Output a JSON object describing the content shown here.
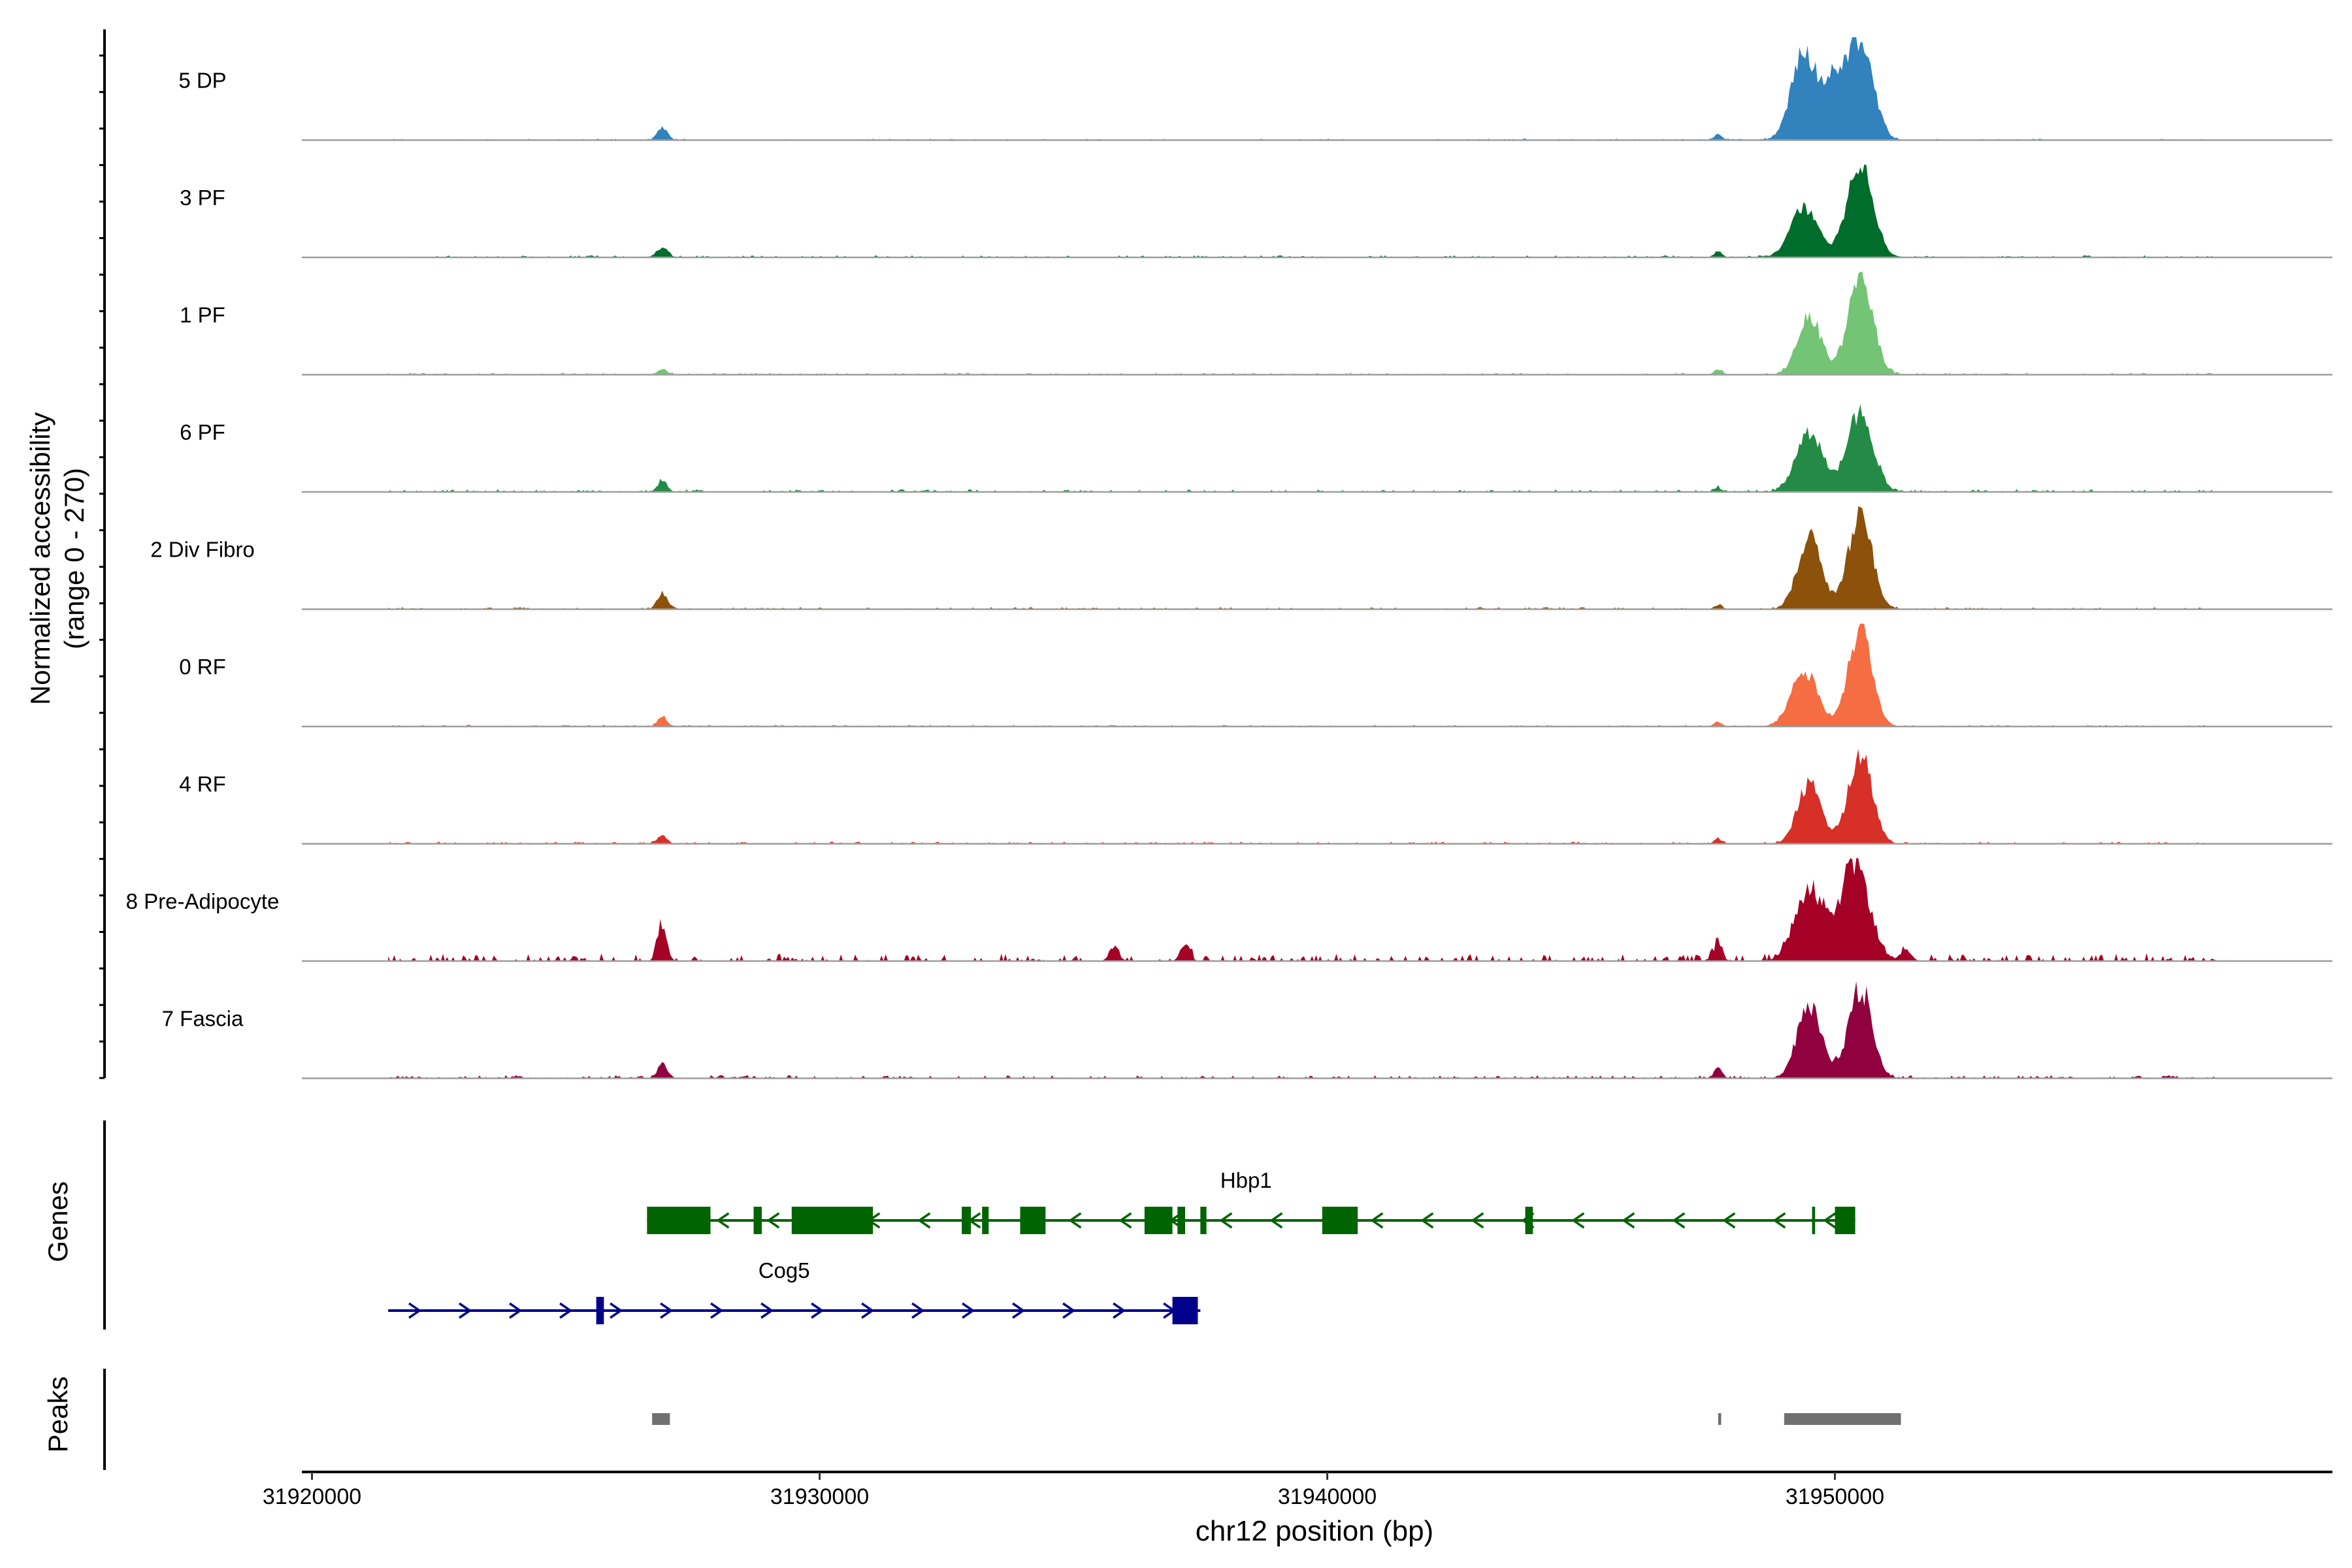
{
  "chart_data": {
    "type": "area",
    "title": "",
    "ylabel_line1": "Normalized accessibility",
    "ylabel_line2": "(range 0 - 270)",
    "xlabel": "chr12 position (bp)",
    "xlim": [
      31919800,
      31959800
    ],
    "xticks": [
      31920000,
      31930000,
      31940000,
      31950000
    ],
    "xtick_labels": [
      "31920000",
      "31930000",
      "31940000",
      "31950000"
    ],
    "y_range": [
      0,
      270
    ],
    "panel_labels": {
      "genes": "Genes",
      "peaks": "Peaks"
    },
    "tracks": [
      {
        "name": "5 DP",
        "color": "#3182bd",
        "peaks": [
          [
            31926900,
            0.13,
            100
          ],
          [
            31949400,
            0.9,
            250
          ],
          [
            31950000,
            0.55,
            200
          ],
          [
            31950500,
            1.0,
            250
          ],
          [
            31947700,
            0.06,
            80
          ]
        ],
        "noise": 0.015
      },
      {
        "name": "3 PF",
        "color": "#006d2c",
        "peaks": [
          [
            31926900,
            0.1,
            110
          ],
          [
            31949400,
            0.5,
            270
          ],
          [
            31950500,
            1.0,
            250
          ],
          [
            31947700,
            0.06,
            80
          ]
        ],
        "noise": 0.02
      },
      {
        "name": "1 PF",
        "color": "#74c476",
        "peaks": [
          [
            31926900,
            0.05,
            100
          ],
          [
            31949500,
            0.6,
            230
          ],
          [
            31950500,
            1.0,
            240
          ],
          [
            31947700,
            0.05,
            80
          ]
        ],
        "noise": 0.02
      },
      {
        "name": "6 PF",
        "color": "#238b45",
        "peaks": [
          [
            31926900,
            0.12,
            90
          ],
          [
            31949500,
            0.6,
            260
          ],
          [
            31950500,
            0.82,
            250
          ],
          [
            31947700,
            0.04,
            80
          ]
        ],
        "noise": 0.025
      },
      {
        "name": "2 Div Fibro",
        "color": "#8c510a",
        "peaks": [
          [
            31926900,
            0.16,
            100
          ],
          [
            31949500,
            0.75,
            230
          ],
          [
            31950500,
            1.0,
            230
          ],
          [
            31947700,
            0.04,
            80
          ]
        ],
        "noise": 0.02
      },
      {
        "name": "0 RF",
        "color": "#f46d43",
        "peaks": [
          [
            31926900,
            0.1,
            90
          ],
          [
            31949400,
            0.55,
            260
          ],
          [
            31950500,
            1.0,
            230
          ],
          [
            31947700,
            0.05,
            80
          ]
        ],
        "noise": 0.018
      },
      {
        "name": "4 RF",
        "color": "#d73027",
        "peaks": [
          [
            31926900,
            0.09,
            90
          ],
          [
            31949500,
            0.62,
            230
          ],
          [
            31950500,
            0.92,
            230
          ],
          [
            31947700,
            0.05,
            80
          ]
        ],
        "noise": 0.02
      },
      {
        "name": "8 Pre-Adipocyte",
        "color": "#a50026",
        "peaks": [
          [
            31926900,
            0.35,
            90
          ],
          [
            31949500,
            0.75,
            280
          ],
          [
            31950400,
            1.0,
            280
          ],
          [
            31947700,
            0.18,
            80
          ],
          [
            31951400,
            0.12,
            100
          ],
          [
            31935800,
            0.15,
            90
          ],
          [
            31937200,
            0.18,
            90
          ]
        ],
        "noise": 0.07
      },
      {
        "name": "7 Fascia",
        "color": "#91003f",
        "peaks": [
          [
            31926900,
            0.15,
            90
          ],
          [
            31949500,
            0.72,
            240
          ],
          [
            31950500,
            0.92,
            230
          ],
          [
            31947700,
            0.1,
            80
          ]
        ],
        "noise": 0.03
      }
    ],
    "genes": [
      {
        "name": "Hbp1",
        "strand": "-",
        "color": "#006400",
        "start": 31926600,
        "end": 31950400,
        "label_pos": 31938400,
        "exons": [
          [
            31926600,
            31927850
          ],
          [
            31928700,
            31928860
          ],
          [
            31929450,
            31931050
          ],
          [
            31932800,
            31932980
          ],
          [
            31933200,
            31933330
          ],
          [
            31933950,
            31934450
          ],
          [
            31936400,
            31936950
          ],
          [
            31937050,
            31937200
          ],
          [
            31937500,
            31937620
          ],
          [
            31939900,
            31940600
          ],
          [
            31943900,
            31944050
          ],
          [
            31949550,
            31949610
          ],
          [
            31950000,
            31950400
          ]
        ]
      },
      {
        "name": "Cog5",
        "strand": "+",
        "color": "#00008b",
        "start": 31921500,
        "end": 31937500,
        "label_pos": 31929300,
        "exons": [
          [
            31925600,
            31925750
          ],
          [
            31936950,
            31937450
          ]
        ]
      }
    ],
    "peaks": [
      [
        31926700,
        31927050
      ],
      [
        31947700,
        31947760
      ],
      [
        31949000,
        31951300
      ]
    ]
  }
}
